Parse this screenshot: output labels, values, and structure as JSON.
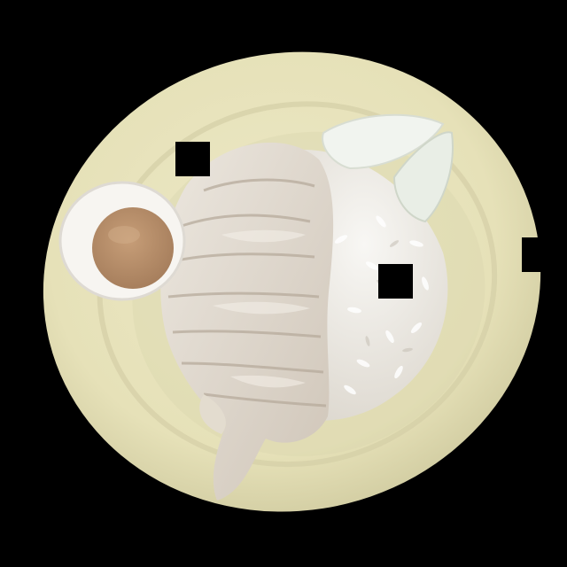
{
  "colors": {
    "background": "#000000",
    "plate": "#e6e1b8",
    "plate_shadow": "#b9b58f",
    "rice": "#f1efe9",
    "chicken": "#ded6cc",
    "sauce": "#b9916c",
    "cucumber": "#eef1ec",
    "occluder": "#000000"
  },
  "scene": {
    "subject": "plate-of-chicken-rice",
    "items": [
      "plate",
      "sliced-chicken",
      "white-rice",
      "cucumber-slices",
      "sauce-dish"
    ],
    "occluder_count": 5
  }
}
